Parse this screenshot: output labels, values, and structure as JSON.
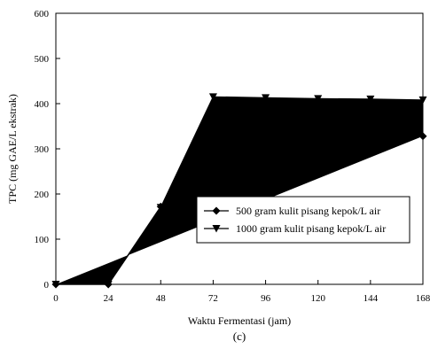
{
  "chart_data": {
    "type": "line",
    "title": "",
    "xlabel": "Waktu Fermentasi (jam)",
    "ylabel": "TPC (mg GAE/L ekstrak)",
    "caption": "(c)",
    "xlim": [
      0,
      168
    ],
    "ylim": [
      0,
      600
    ],
    "xticks": [
      0,
      24,
      48,
      72,
      96,
      120,
      144,
      168
    ],
    "yticks": [
      0,
      100,
      200,
      300,
      400,
      500,
      600
    ],
    "grid": false,
    "legend_position": "center-right",
    "series": [
      {
        "name": "500 gram kulit pisang kepok/L air",
        "marker": "diamond",
        "color": "#000000",
        "x": [
          0,
          24,
          48,
          72,
          96,
          120,
          144,
          168
        ],
        "y": [
          0,
          0,
          172,
          332,
          332,
          330,
          330,
          328
        ]
      },
      {
        "name": "1000 gram kulit pisang kepok/L air",
        "marker": "triangle-down",
        "color": "#000000",
        "x": [
          0,
          24,
          48,
          72,
          96,
          120,
          144,
          168
        ],
        "y": [
          0,
          0,
          170,
          415,
          413,
          411,
          410,
          408
        ]
      }
    ]
  }
}
